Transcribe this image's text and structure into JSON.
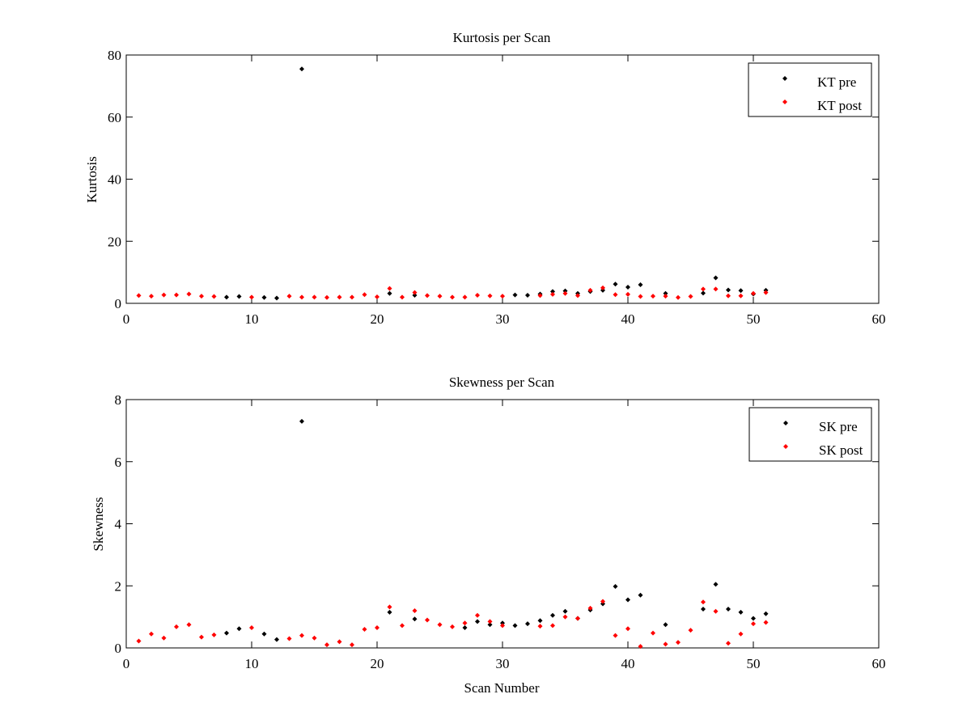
{
  "chart_data": [
    {
      "type": "scatter",
      "title": "Kurtosis per Scan",
      "xlabel": "",
      "ylabel": "Kurtosis",
      "xlim": [
        0,
        60
      ],
      "ylim": [
        0,
        80
      ],
      "xticks": [
        0,
        10,
        20,
        30,
        40,
        50,
        60
      ],
      "yticks": [
        0,
        20,
        40,
        60,
        80
      ],
      "grid": false,
      "legend_position": "top-right",
      "series": [
        {
          "name": "KT pre",
          "color": "#000000",
          "marker": "diamond",
          "points": [
            [
              8,
              2.0
            ],
            [
              9,
              2.2
            ],
            [
              11,
              1.9
            ],
            [
              12,
              1.7
            ],
            [
              14,
              75.5
            ],
            [
              21,
              3.2
            ],
            [
              23,
              2.6
            ],
            [
              31,
              2.7
            ],
            [
              32,
              2.6
            ],
            [
              33,
              3.0
            ],
            [
              34,
              3.8
            ],
            [
              35,
              4.0
            ],
            [
              36,
              3.2
            ],
            [
              37,
              3.8
            ],
            [
              38,
              4.2
            ],
            [
              39,
              6.2
            ],
            [
              40,
              5.2
            ],
            [
              41,
              6.0
            ],
            [
              43,
              3.2
            ],
            [
              46,
              3.3
            ],
            [
              47,
              8.2
            ],
            [
              48,
              4.3
            ],
            [
              49,
              4.1
            ],
            [
              50,
              3.0
            ],
            [
              51,
              4.2
            ]
          ]
        },
        {
          "name": "KT post",
          "color": "#ff0000",
          "marker": "diamond",
          "points": [
            [
              1,
              2.5
            ],
            [
              2,
              2.3
            ],
            [
              3,
              2.7
            ],
            [
              4,
              2.7
            ],
            [
              5,
              3.0
            ],
            [
              6,
              2.3
            ],
            [
              7,
              2.2
            ],
            [
              10,
              2.0
            ],
            [
              13,
              2.3
            ],
            [
              14,
              2.0
            ],
            [
              15,
              2.0
            ],
            [
              16,
              1.9
            ],
            [
              17,
              2.0
            ],
            [
              18,
              2.0
            ],
            [
              19,
              2.8
            ],
            [
              20,
              2.1
            ],
            [
              21,
              4.8
            ],
            [
              22,
              2.0
            ],
            [
              23,
              3.5
            ],
            [
              24,
              2.5
            ],
            [
              25,
              2.3
            ],
            [
              26,
              2.0
            ],
            [
              27,
              2.0
            ],
            [
              28,
              2.6
            ],
            [
              29,
              2.4
            ],
            [
              30,
              2.3
            ],
            [
              33,
              2.5
            ],
            [
              34,
              2.9
            ],
            [
              35,
              3.2
            ],
            [
              36,
              2.5
            ],
            [
              37,
              4.2
            ],
            [
              38,
              5.0
            ],
            [
              39,
              2.8
            ],
            [
              40,
              2.9
            ],
            [
              41,
              2.2
            ],
            [
              42,
              2.3
            ],
            [
              43,
              2.3
            ],
            [
              44,
              1.9
            ],
            [
              45,
              2.2
            ],
            [
              46,
              4.6
            ],
            [
              47,
              4.6
            ],
            [
              48,
              2.4
            ],
            [
              49,
              2.4
            ],
            [
              50,
              3.2
            ],
            [
              51,
              3.5
            ]
          ]
        }
      ]
    },
    {
      "type": "scatter",
      "title": "Skewness per Scan",
      "xlabel": "Scan Number",
      "ylabel": "Skewness",
      "xlim": [
        0,
        60
      ],
      "ylim": [
        0,
        8
      ],
      "xticks": [
        0,
        10,
        20,
        30,
        40,
        50,
        60
      ],
      "yticks": [
        0,
        2,
        4,
        6,
        8
      ],
      "grid": false,
      "legend_position": "top-right",
      "series": [
        {
          "name": "SK pre",
          "color": "#000000",
          "marker": "diamond",
          "points": [
            [
              8,
              0.48
            ],
            [
              9,
              0.62
            ],
            [
              11,
              0.45
            ],
            [
              12,
              0.27
            ],
            [
              14,
              7.3
            ],
            [
              21,
              1.15
            ],
            [
              23,
              0.93
            ],
            [
              27,
              0.65
            ],
            [
              28,
              0.85
            ],
            [
              29,
              0.75
            ],
            [
              30,
              0.8
            ],
            [
              31,
              0.72
            ],
            [
              32,
              0.78
            ],
            [
              33,
              0.88
            ],
            [
              34,
              1.05
            ],
            [
              35,
              1.18
            ],
            [
              36,
              0.95
            ],
            [
              37,
              1.22
            ],
            [
              38,
              1.42
            ],
            [
              39,
              1.98
            ],
            [
              40,
              1.55
            ],
            [
              41,
              1.7
            ],
            [
              43,
              0.75
            ],
            [
              46,
              1.25
            ],
            [
              47,
              2.05
            ],
            [
              48,
              1.25
            ],
            [
              49,
              1.15
            ],
            [
              50,
              0.95
            ],
            [
              51,
              1.1
            ]
          ]
        },
        {
          "name": "SK post",
          "color": "#ff0000",
          "marker": "diamond",
          "points": [
            [
              1,
              0.22
            ],
            [
              2,
              0.45
            ],
            [
              3,
              0.32
            ],
            [
              4,
              0.68
            ],
            [
              5,
              0.75
            ],
            [
              6,
              0.35
            ],
            [
              7,
              0.42
            ],
            [
              10,
              0.65
            ],
            [
              13,
              0.3
            ],
            [
              14,
              0.4
            ],
            [
              15,
              0.32
            ],
            [
              16,
              0.1
            ],
            [
              17,
              0.2
            ],
            [
              18,
              0.1
            ],
            [
              19,
              0.6
            ],
            [
              20,
              0.65
            ],
            [
              21,
              1.32
            ],
            [
              22,
              0.72
            ],
            [
              23,
              1.2
            ],
            [
              24,
              0.9
            ],
            [
              25,
              0.75
            ],
            [
              26,
              0.68
            ],
            [
              27,
              0.8
            ],
            [
              28,
              1.05
            ],
            [
              29,
              0.85
            ],
            [
              30,
              0.72
            ],
            [
              33,
              0.7
            ],
            [
              34,
              0.72
            ],
            [
              35,
              1.0
            ],
            [
              36,
              0.95
            ],
            [
              37,
              1.28
            ],
            [
              38,
              1.5
            ],
            [
              39,
              0.4
            ],
            [
              40,
              0.62
            ],
            [
              41,
              0.05
            ],
            [
              42,
              0.48
            ],
            [
              43,
              0.12
            ],
            [
              44,
              0.18
            ],
            [
              45,
              0.57
            ],
            [
              46,
              1.48
            ],
            [
              47,
              1.18
            ],
            [
              48,
              0.15
            ],
            [
              49,
              0.45
            ],
            [
              50,
              0.78
            ],
            [
              51,
              0.82
            ]
          ]
        }
      ]
    }
  ]
}
